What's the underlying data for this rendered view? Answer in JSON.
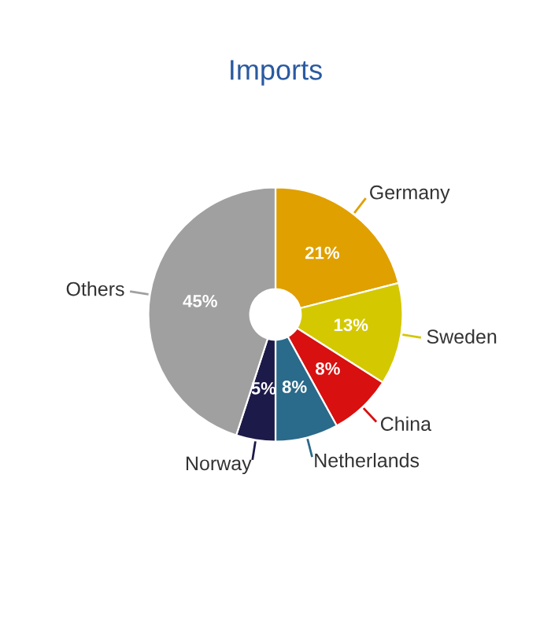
{
  "chart_data": {
    "type": "donut",
    "title": "Imports",
    "categories": [
      "Germany",
      "Sweden",
      "China",
      "Netherlands",
      "Norway",
      "Others"
    ],
    "values": [
      21,
      13,
      8,
      8,
      5,
      45
    ],
    "value_labels": [
      "21%",
      "13%",
      "8%",
      "8%",
      "5%",
      "45%"
    ],
    "colors": [
      "#e0a000",
      "#d4c800",
      "#d81010",
      "#2a6a8a",
      "#1c1a48",
      "#a0a0a0"
    ]
  }
}
